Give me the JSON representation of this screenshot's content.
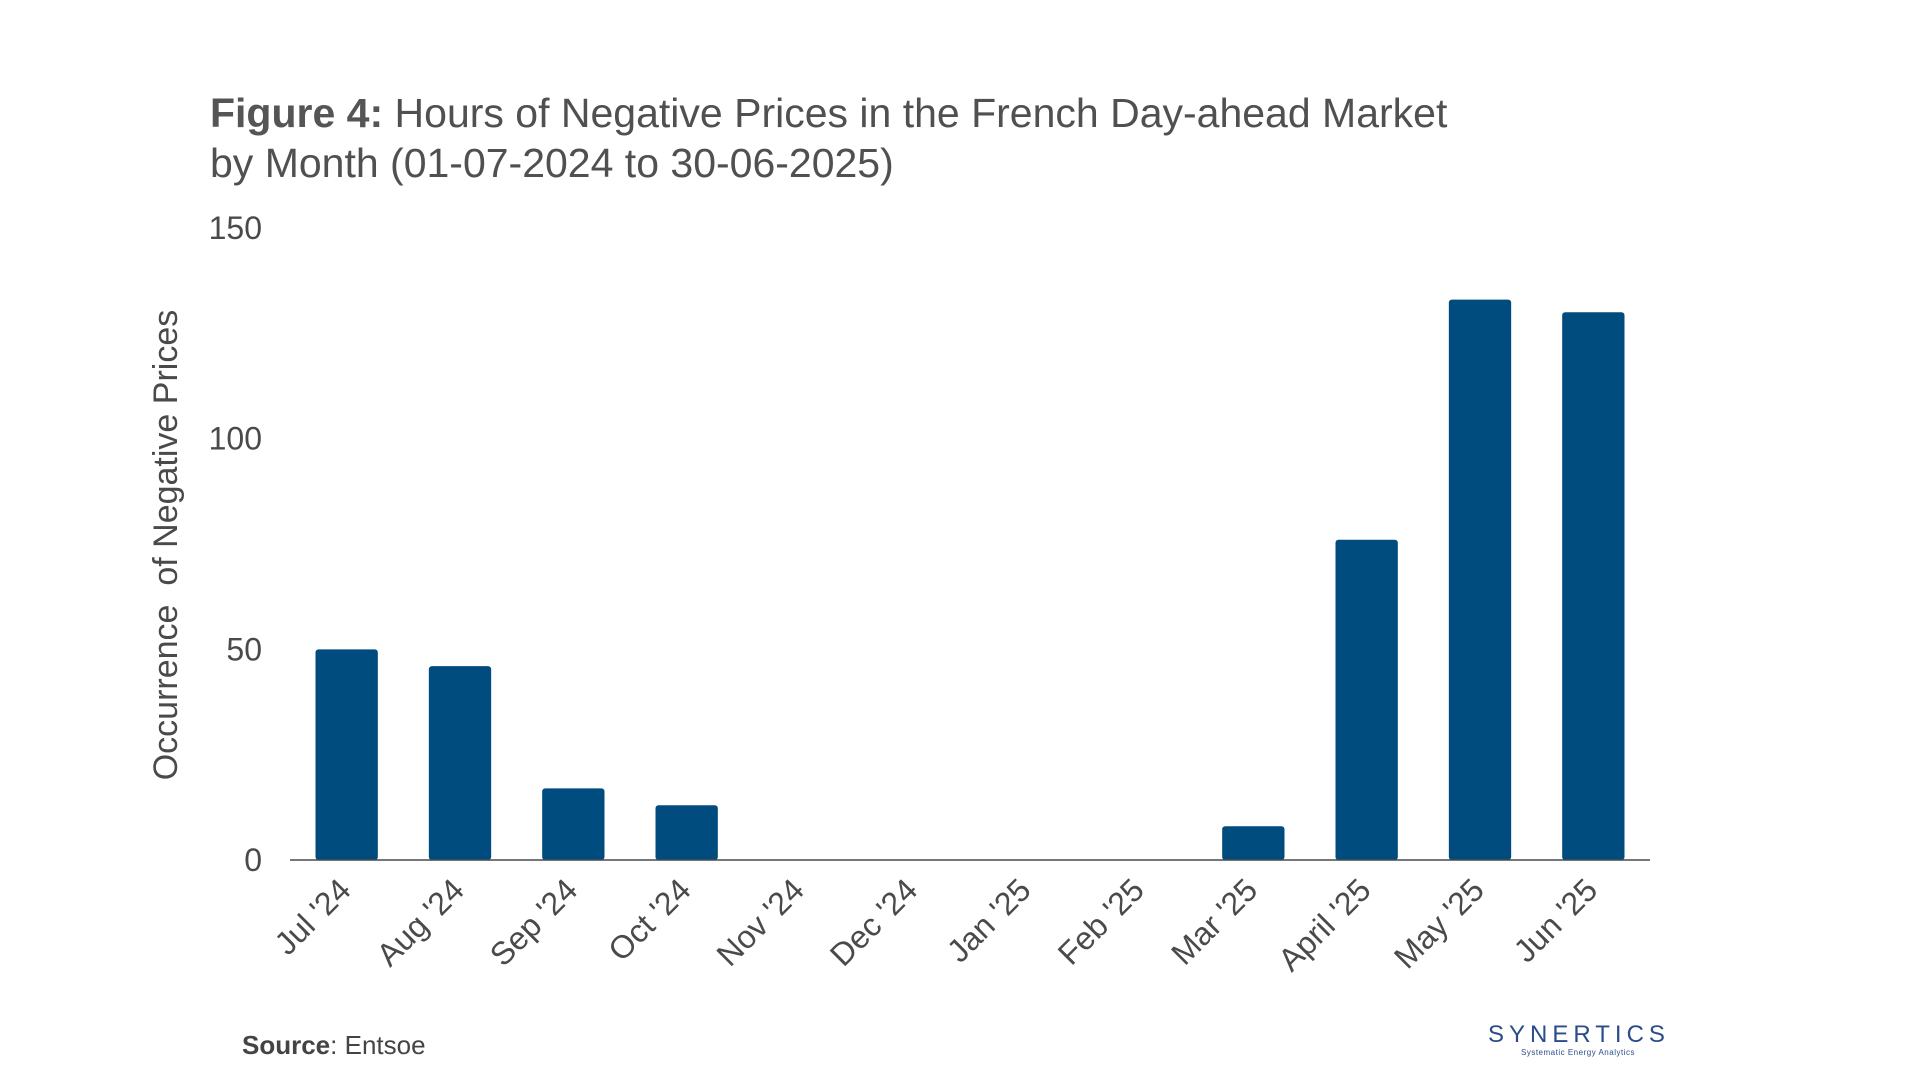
{
  "title": {
    "prefix": "Figure 4:",
    "line1": "Hours of Negative Prices in the French Day-ahead Market",
    "line2": "by Month (01-07-2024 to 30-06-2025)"
  },
  "source": {
    "label": "Source",
    "text": ": Entsoe"
  },
  "logo": {
    "name": "SYNERTICS",
    "tagline": "Systematic Energy Analytics"
  },
  "colors": {
    "bar": "#004c7f",
    "axis": "#4a4a4a",
    "text": "#4a4a4a"
  },
  "chart_data": {
    "type": "bar",
    "title": "Hours of Negative Prices in the French Day-ahead Market by Month (01-07-2024 to 30-06-2025)",
    "xlabel": "",
    "ylabel": "Occurrence  of Negative Prices",
    "ylim": [
      0,
      150
    ],
    "yticks": [
      0,
      50,
      100,
      150
    ],
    "grid": false,
    "categories": [
      "Jul '24",
      "Aug '24",
      "Sep '24",
      "Oct '24",
      "Nov '24",
      "Dec '24",
      "Jan '25",
      "Feb '25",
      "Mar '25",
      "April '25",
      "May '25",
      "Jun '25"
    ],
    "values": [
      50,
      46,
      17,
      13,
      0,
      0,
      0,
      0,
      8,
      76,
      133,
      130
    ]
  }
}
